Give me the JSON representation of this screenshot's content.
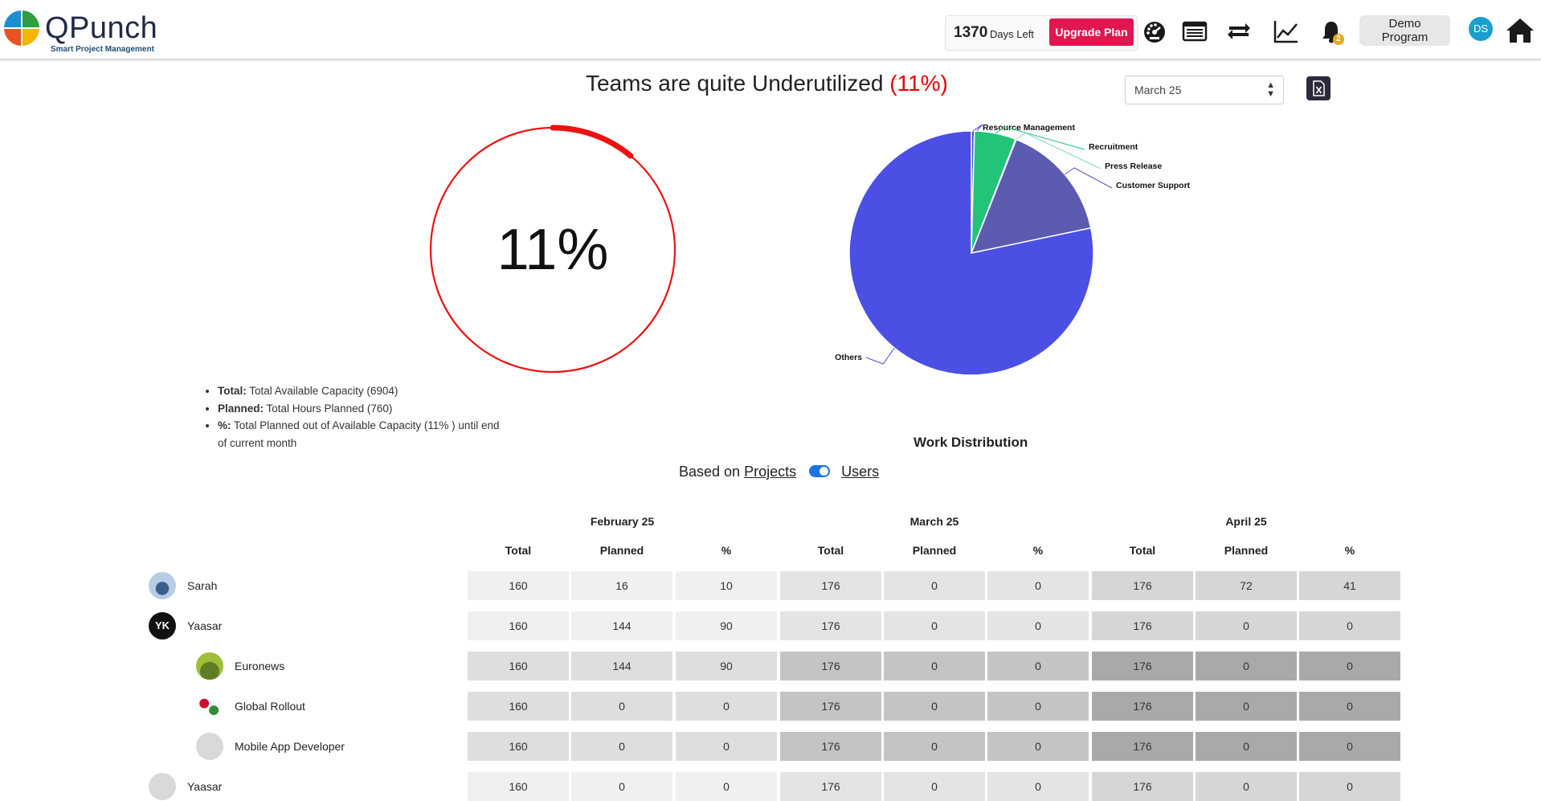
{
  "header": {
    "logo_text": "QPunch",
    "logo_sub": "Smart Project Management",
    "days_left_num": "1370",
    "days_left_label": "Days Left",
    "upgrade_label": "Upgrade Plan",
    "notification_count": "2",
    "program_label": "Demo Program",
    "user_initials": "DS",
    "icons": [
      "dashboard-icon",
      "list-icon",
      "switch-icon",
      "trend-chart-icon",
      "bell-icon",
      "home-icon"
    ]
  },
  "summary": {
    "title_text": "Teams are quite Underutilized",
    "title_pct": "(11%)",
    "gauge_value": "11%",
    "gauge_fraction": 0.11,
    "month_value": "March 25"
  },
  "legend": [
    {
      "bold": "Total:",
      "text": " Total Available Capacity (6904)"
    },
    {
      "bold": "Planned:",
      "text": " Total Hours Planned (760)"
    },
    {
      "bold": "%:",
      "text": " Total Planned out of Available Capacity (11% ) until end of current month"
    }
  ],
  "pie": {
    "title": "Work Distribution",
    "slices": [
      {
        "label": "Resource Management",
        "fraction": 0.004,
        "color": "#4646d6"
      },
      {
        "label": "Recruitment",
        "fraction": 0.055,
        "color": "#22c47a"
      },
      {
        "label": "Press Release",
        "fraction": 0.001,
        "color": "#8ad8b8"
      },
      {
        "label": "Customer Support",
        "fraction": 0.157,
        "color": "#5b5bb0"
      },
      {
        "label": "Others",
        "fraction": 0.783,
        "color": "#4b4fe3"
      }
    ]
  },
  "toggle": {
    "prefix": "Based on",
    "left_label": "Projects",
    "right_label": "Users"
  },
  "table": {
    "months": [
      "February 25",
      "March 25",
      "April 25"
    ],
    "sub_headers": [
      "Total",
      "Planned",
      "%"
    ],
    "rows": [
      {
        "name": "Sarah",
        "values": [
          "160",
          "16",
          "10",
          "176",
          "0",
          "0",
          "176",
          "72",
          "41"
        ]
      },
      {
        "name": "Yaasar",
        "initials": "YK",
        "values": [
          "160",
          "144",
          "90",
          "176",
          "0",
          "0",
          "176",
          "0",
          "0"
        ]
      },
      {
        "name": "Euronews",
        "values": [
          "160",
          "144",
          "90",
          "176",
          "0",
          "0",
          "176",
          "0",
          "0"
        ]
      },
      {
        "name": "Global Rollout",
        "values": [
          "160",
          "0",
          "0",
          "176",
          "0",
          "0",
          "176",
          "0",
          "0"
        ]
      },
      {
        "name": "Mobile App Developer",
        "values": [
          "160",
          "0",
          "0",
          "176",
          "0",
          "0",
          "176",
          "0",
          "0"
        ]
      },
      {
        "name": "Yaasar",
        "values": [
          "160",
          "0",
          "0",
          "176",
          "0",
          "0",
          "176",
          "0",
          "0"
        ]
      }
    ]
  }
}
